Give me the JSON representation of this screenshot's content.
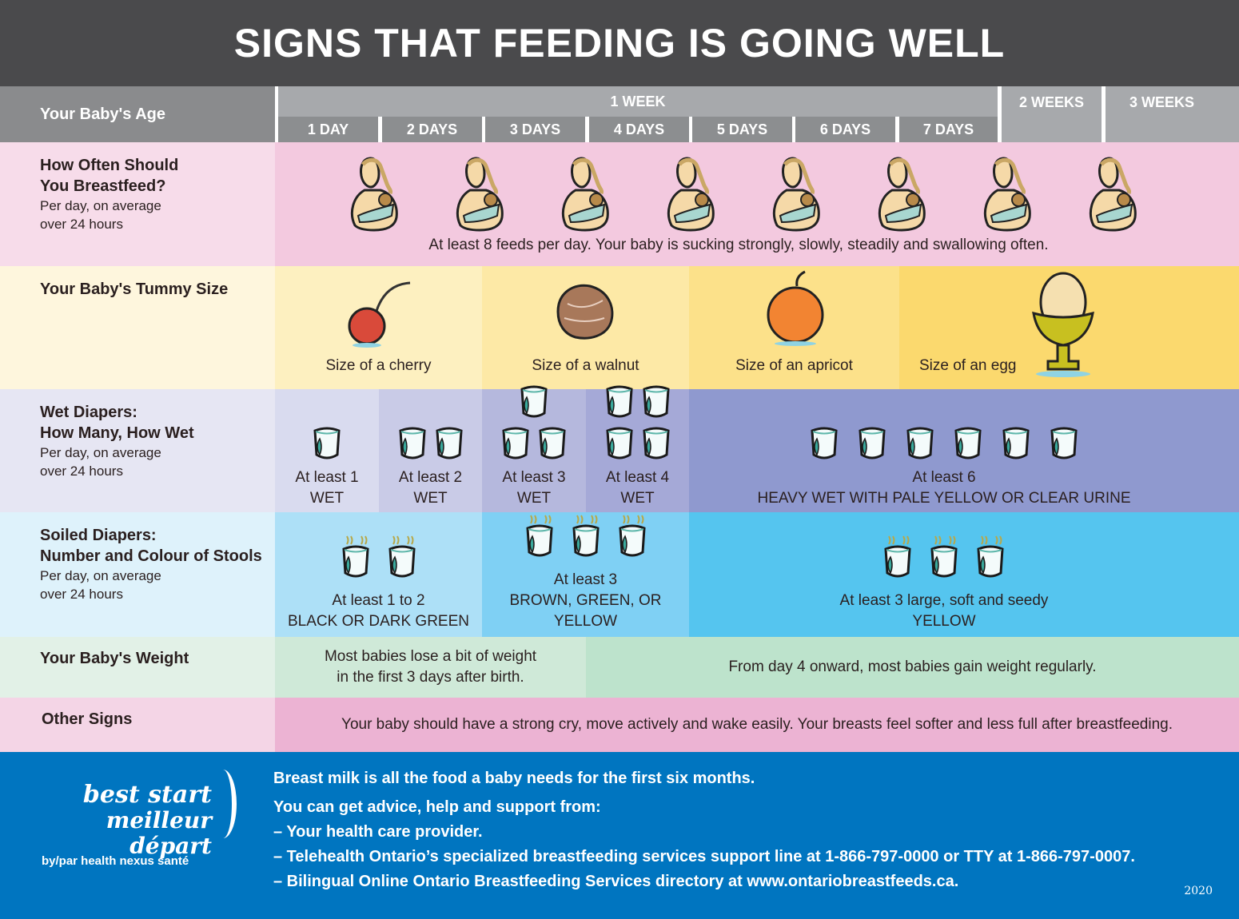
{
  "title": "SIGNS THAT FEEDING IS GOING WELL",
  "header": {
    "age_label": "Your Baby's Age",
    "week1": "1 WEEK",
    "days": [
      "1 DAY",
      "2 DAYS",
      "3 DAYS",
      "4 DAYS",
      "5 DAYS",
      "6 DAYS",
      "7 DAYS"
    ],
    "week2": "2 WEEKS",
    "week3": "3 WEEKS"
  },
  "feeding": {
    "title_line1": "How Often Should",
    "title_line2": "You Breastfeed?",
    "sub1": "Per day, on average",
    "sub2": "over 24 hours",
    "icon": "breastfeeding-mother-icon",
    "icon_count": 8,
    "text": "At least 8 feeds per day. Your baby is sucking strongly, slowly, steadily and swallowing often."
  },
  "tummy": {
    "title": "Your Baby's Tummy Size",
    "items": [
      {
        "label": "Size of a cherry",
        "icon": "cherry-icon"
      },
      {
        "label": "Size of a walnut",
        "icon": "walnut-icon"
      },
      {
        "label": "Size of an apricot",
        "icon": "apricot-icon"
      },
      {
        "label": "Size of an egg",
        "icon": "egg-in-cup-icon"
      }
    ]
  },
  "wet": {
    "title_line1": "Wet Diapers:",
    "title_line2": "How Many, How Wet",
    "sub1": "Per day, on average",
    "sub2": "over 24 hours",
    "items": [
      {
        "line1": "At least 1",
        "line2": "WET",
        "count": 1
      },
      {
        "line1": "At least 2",
        "line2": "WET",
        "count": 2
      },
      {
        "line1": "At least 3",
        "line2": "WET",
        "count": 3
      },
      {
        "line1": "At least 4",
        "line2": "WET",
        "count": 4
      },
      {
        "line1": "At least 6",
        "line2": "HEAVY WET WITH PALE YELLOW OR CLEAR URINE",
        "count": 6
      }
    ]
  },
  "soiled": {
    "title_line1": "Soiled Diapers:",
    "title_line2": "Number and Colour of Stools",
    "sub1": "Per day, on average",
    "sub2": "over 24 hours",
    "items": [
      {
        "line1": "At least 1 to 2",
        "line2": "BLACK OR DARK GREEN",
        "count": 2
      },
      {
        "line1": "At least 3",
        "line2": "BROWN, GREEN, OR YELLOW",
        "count": 3
      },
      {
        "line1": "At least 3 large, soft and seedy",
        "line2": "YELLOW",
        "count": 3
      }
    ]
  },
  "weight": {
    "title": "Your Baby's Weight",
    "early_line1": "Most babies lose a bit of weight",
    "early_line2": "in the first 3 days after birth.",
    "later": "From day 4 onward, most babies gain weight regularly."
  },
  "other": {
    "title": "Other Signs",
    "text": "Your baby should have a strong cry, move actively and wake easily. Your breasts feel softer and less full after breastfeeding."
  },
  "footer": {
    "logo_line1": "best start",
    "logo_line2": "meilleur départ",
    "logo_by": "by/par health nexus santé",
    "lines": [
      "Breast milk is all the food a baby needs for the first six months.",
      "You can get advice, help and support from:",
      "– Your health care provider.",
      "– Telehealth Ontario’s specialized breastfeeding services support line at 1-866-797-0000 or TTY at 1-866-797-0007.",
      "– Bilingual Online Ontario Breastfeeding Services directory at www.ontariobreastfeeds.ca."
    ],
    "year": "2020"
  },
  "colors": {
    "title_bg": "#4a4a4c",
    "footer_bg": "#0075c0",
    "feed": "#f3c9df",
    "wet_heavy": "#8f99cf",
    "soiled_heavy": "#55c5ef"
  }
}
